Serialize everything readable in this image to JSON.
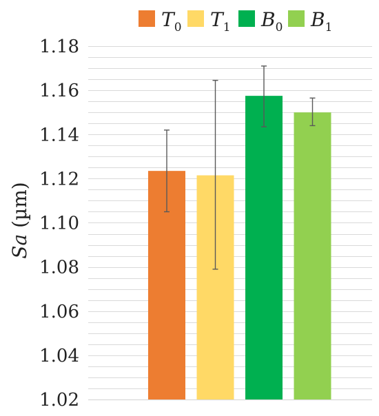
{
  "chart_data": {
    "type": "bar",
    "categories": [
      "T0",
      "T1",
      "B0",
      "B1"
    ],
    "series": [
      {
        "name": "T0",
        "base": "T",
        "sub": "0",
        "value": 1.1235,
        "error": [
          1.105,
          1.142
        ],
        "color": "#ED7D31"
      },
      {
        "name": "T1",
        "base": "T",
        "sub": "1",
        "value": 1.1215,
        "error": [
          1.079,
          1.1645
        ],
        "color": "#FFD966"
      },
      {
        "name": "B0",
        "base": "B",
        "sub": "0",
        "value": 1.1575,
        "error": [
          1.1435,
          1.171
        ],
        "color": "#00B050"
      },
      {
        "name": "B1",
        "base": "B",
        "sub": "1",
        "value": 1.15,
        "error": [
          1.144,
          1.1565
        ],
        "color": "#92D050"
      }
    ],
    "title": "",
    "xlabel": "",
    "ylabel_italic": "Sa",
    "ylabel_unit": " (µm)",
    "ylim": [
      1.02,
      1.18
    ],
    "yticks": [
      "1.02",
      "1.04",
      "1.06",
      "1.08",
      "1.10",
      "1.12",
      "1.14",
      "1.16",
      "1.18"
    ],
    "ytick_values": [
      1.02,
      1.04,
      1.06,
      1.08,
      1.1,
      1.12,
      1.14,
      1.16,
      1.18
    ],
    "minor_step": 0.005,
    "grid": true,
    "legend_position": "top",
    "colors": {
      "grid": "#d9d9d9",
      "error_bar": "#595959",
      "axis": "#d9d9d9"
    }
  }
}
